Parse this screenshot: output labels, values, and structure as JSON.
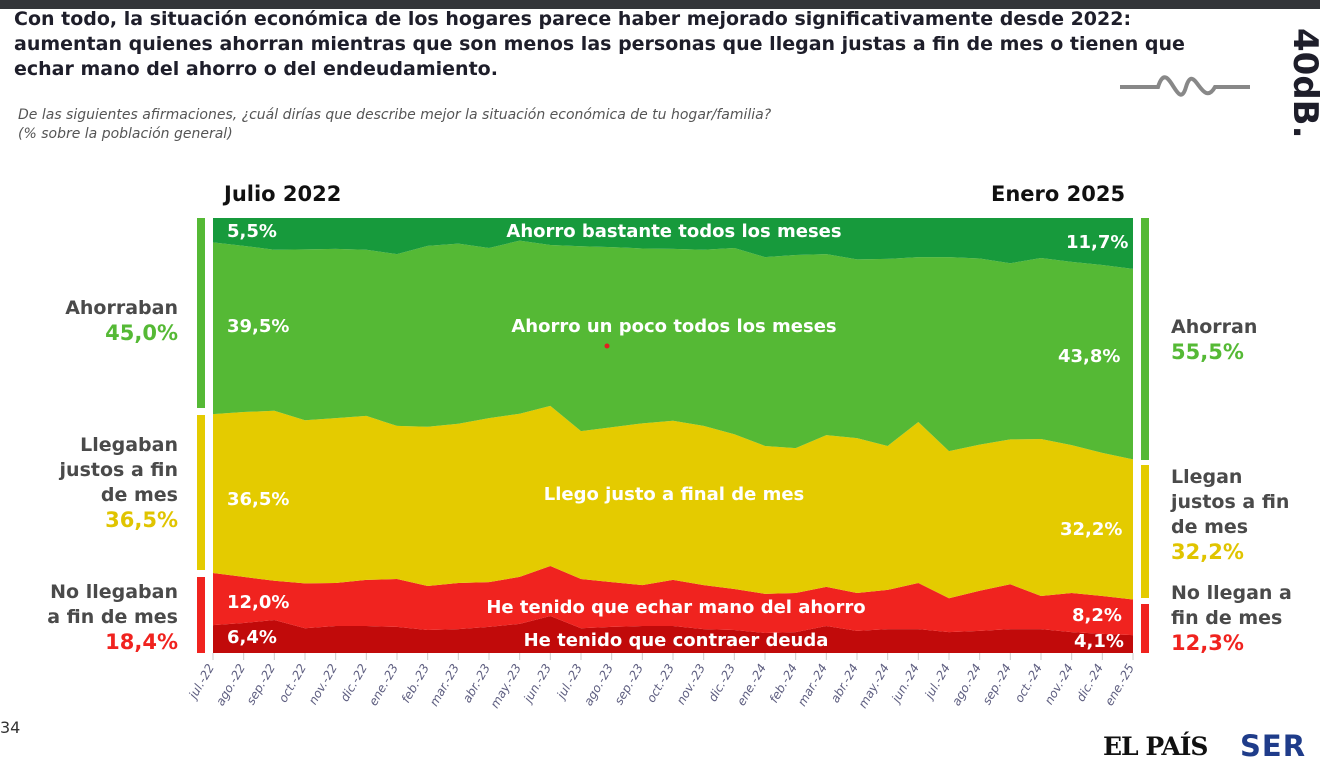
{
  "title": "Con todo, la situación económica de los hogares parece haber mejorado significativamente desde 2022: aumentan quienes ahorran mientras que son menos las personas que llegan justas a fin de mes o tienen que echar mano del ahorro o del endeudamiento.",
  "question": "De las siguientes afirmaciones, ¿cuál dirías que describe mejor la situación económica de tu hogar/familia?",
  "question_note": "(%  sobre la población general)",
  "period_start": "Julio 2022",
  "period_end": "Enero 2025",
  "page_number": "34",
  "logos": {
    "el_pais": "EL PAÍS",
    "ser": "SER",
    "side": "40dB."
  },
  "left": {
    "save": {
      "label": "Ahorraban",
      "value": "45,0%"
    },
    "just": {
      "label1": "Llegaban",
      "label2": "justos a fin",
      "label3": "de mes",
      "value": "36,5%"
    },
    "short": {
      "label1": "No llegaban",
      "label2": "a fin de mes",
      "value": "18,4%"
    }
  },
  "right": {
    "save": {
      "label": "Ahorran",
      "value": "55,5%"
    },
    "just": {
      "label1": "Llegan",
      "label2": "justos a fin",
      "label3": "de mes",
      "value": "32,2%"
    },
    "short": {
      "label1": "No llegan a",
      "label2": "fin de mes",
      "value": "12,3%"
    }
  },
  "labels": {
    "bastante": {
      "name": "Ahorro bastante todos los meses",
      "start": "5,5%",
      "end": "11,7%"
    },
    "poco": {
      "name": "Ahorro un poco todos los meses",
      "start": "39,5%",
      "end": "43,8%"
    },
    "justo": {
      "name": "Llego justo a final de mes",
      "start": "36,5%",
      "end": "32,2%"
    },
    "mano": {
      "name": "He tenido que echar mano del ahorro",
      "start": "12,0%",
      "end": "8,2%"
    },
    "deuda": {
      "name": "He tenido que contraer deuda",
      "start": "6,4%",
      "end": "4,1%"
    }
  },
  "colors": {
    "bastante": "#179a3c",
    "poco": "#55b935",
    "justo": "#e4cb00",
    "mano": "#f0231f",
    "deuda": "#c10a0a"
  },
  "chart_data": {
    "type": "area",
    "stacked": true,
    "ylim": [
      0,
      100
    ],
    "categories": [
      "jul.-22",
      "ago.-22",
      "sep.-22",
      "oct.-22",
      "nov.-22",
      "dic.-22",
      "ene.-23",
      "feb.-23",
      "mar.-23",
      "abr.-23",
      "may.-23",
      "jun.-23",
      "jul.-23",
      "ago.-23",
      "sep.-23",
      "oct.-23",
      "nov.-23",
      "dic.-23",
      "ene.-24",
      "feb.-24",
      "mar.-24",
      "abr.-24",
      "may.-24",
      "jun.-24",
      "jul.-24",
      "ago.-24",
      "sep.-24",
      "oct.-24",
      "nov.-24",
      "dic.-24",
      "ene.-25"
    ],
    "series": [
      {
        "key": "deuda",
        "name": "He tenido que contraer deuda",
        "values": [
          6.4,
          6.9,
          7.6,
          5.7,
          6.2,
          6.2,
          6.0,
          5.3,
          5.5,
          6.0,
          6.7,
          8.5,
          5.7,
          6.0,
          6.2,
          6.2,
          5.5,
          5.3,
          4.6,
          4.8,
          6.2,
          5.1,
          5.5,
          5.5,
          4.8,
          5.1,
          5.5,
          5.5,
          4.8,
          4.4,
          4.1
        ]
      },
      {
        "key": "mano",
        "name": "He tenido que echar mano del ahorro",
        "values": [
          12.0,
          10.6,
          9.0,
          10.3,
          9.9,
          10.6,
          11.0,
          10.1,
          10.6,
          10.3,
          10.8,
          11.5,
          11.3,
          10.3,
          9.4,
          10.6,
          10.1,
          9.4,
          9.0,
          9.0,
          9.0,
          8.7,
          9.0,
          10.6,
          7.8,
          9.2,
          10.3,
          7.6,
          9.0,
          8.7,
          8.2
        ]
      },
      {
        "key": "justo",
        "name": "Llego justo a final de mes",
        "values": [
          36.5,
          37.9,
          39.1,
          37.5,
          37.9,
          37.7,
          35.2,
          36.6,
          36.6,
          37.7,
          37.5,
          36.8,
          34.0,
          35.6,
          37.2,
          36.6,
          36.6,
          35.6,
          34.0,
          33.3,
          34.9,
          35.6,
          33.1,
          37.0,
          33.8,
          33.6,
          33.3,
          36.1,
          34.0,
          32.9,
          32.2
        ]
      },
      {
        "key": "poco",
        "name": "Ahorro un poco todos los meses",
        "values": [
          39.5,
          38.2,
          37.0,
          39.3,
          38.9,
          38.2,
          39.5,
          41.6,
          41.4,
          39.1,
          39.8,
          37.0,
          42.5,
          41.4,
          40.2,
          39.5,
          40.5,
          42.8,
          43.4,
          44.4,
          41.6,
          41.1,
          43.0,
          37.9,
          44.6,
          42.8,
          40.5,
          41.6,
          42.1,
          43.2,
          43.8
        ]
      },
      {
        "key": "bastante",
        "name": "Ahorro bastante todos los meses",
        "values": [
          5.5,
          6.4,
          7.4,
          7.1,
          7.1,
          7.4,
          8.3,
          6.4,
          6.0,
          6.9,
          5.3,
          6.2,
          6.4,
          6.7,
          6.9,
          7.1,
          7.4,
          6.9,
          9.0,
          8.5,
          8.3,
          9.4,
          9.4,
          9.0,
          9.0,
          9.4,
          10.3,
          9.2,
          10.1,
          10.8,
          11.7
        ]
      }
    ]
  }
}
